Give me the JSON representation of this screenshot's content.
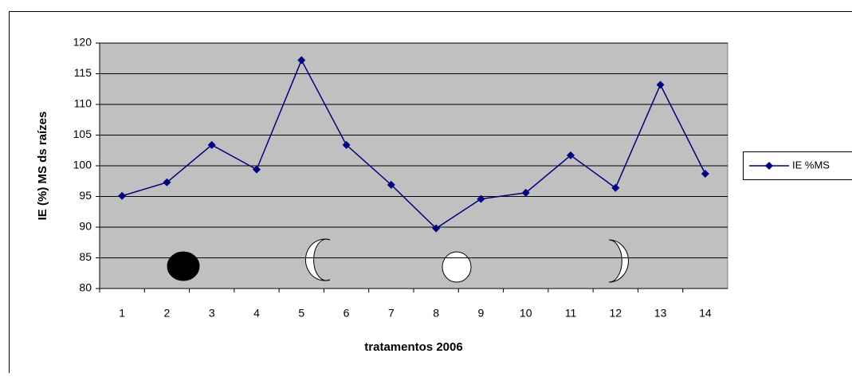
{
  "chart_data": {
    "type": "line",
    "categories": [
      "1",
      "2",
      "3",
      "4",
      "5",
      "6",
      "7",
      "8",
      "9",
      "10",
      "11",
      "12",
      "13",
      "14"
    ],
    "series": [
      {
        "name": "IE %MS",
        "color": "#000080",
        "values": [
          95.1,
          97.3,
          103.4,
          99.4,
          117.2,
          103.4,
          96.9,
          89.8,
          94.6,
          95.6,
          101.7,
          96.4,
          113.2,
          98.7
        ]
      }
    ],
    "ylim": [
      80,
      120
    ],
    "yticks": [
      80,
      85,
      90,
      95,
      100,
      105,
      110,
      115,
      120
    ],
    "ylabel": "IE (%) MS ds raízes",
    "xlabel": "tratamentos 2006",
    "grid": true,
    "legend": "right",
    "plot_background": "#c0c0c0"
  }
}
